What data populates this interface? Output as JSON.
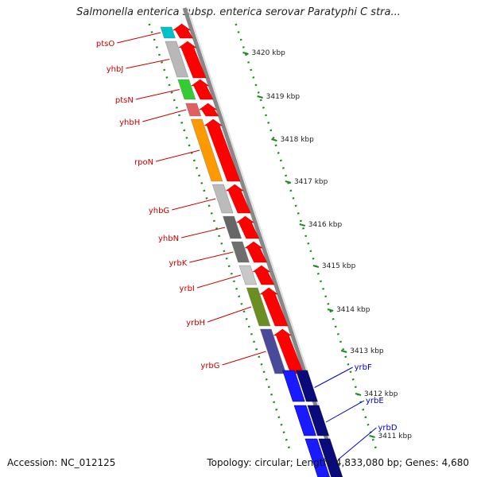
{
  "title": "Salmonella enterica subsp. enterica serovar Paratyphi C stra...",
  "footer": {
    "accession": "Accession: NC_012125",
    "topology": "Topology: circular; Length: 4,833,080 bp; Genes: 4,680"
  },
  "colors": {
    "feature_red": "#ff0000",
    "reverse_label": "#cc0000",
    "forward_label": "#0000cc",
    "forward_feature": "#1a1aff",
    "forward_feature_dark": "#0a0a7a",
    "backbone": "#888888",
    "tick_green": "#1a8a1a"
  },
  "kbp_ticks": [
    "3420 kbp",
    "3419 kbp",
    "3418 kbp",
    "3417 kbp",
    "3416 kbp",
    "3415 kbp",
    "3414 kbp",
    "3413 kbp",
    "3412 kbp",
    "3411 kbp"
  ],
  "reverse_genes": [
    {
      "name": "ptsO",
      "color": "#00c0c8"
    },
    {
      "name": "yhbJ",
      "color": "#b8b8b8"
    },
    {
      "name": "ptsN",
      "color": "#33cc33"
    },
    {
      "name": "yhbH",
      "color": "#e06060"
    },
    {
      "name": "rpoN",
      "color": "#ff9900"
    },
    {
      "name": "yhbG",
      "color": "#bbbbbb"
    },
    {
      "name": "yhbN",
      "color": "#666666"
    },
    {
      "name": "yrbK",
      "color": "#6e6e6e"
    },
    {
      "name": "yrbI",
      "color": "#c8c8c8"
    },
    {
      "name": "yrbH",
      "color": "#6b8e23"
    },
    {
      "name": "yrbG",
      "color": "#4a4a9a"
    }
  ],
  "forward_genes": [
    {
      "name": "yrbF"
    },
    {
      "name": "yrbE"
    },
    {
      "name": "yrbD"
    }
  ]
}
